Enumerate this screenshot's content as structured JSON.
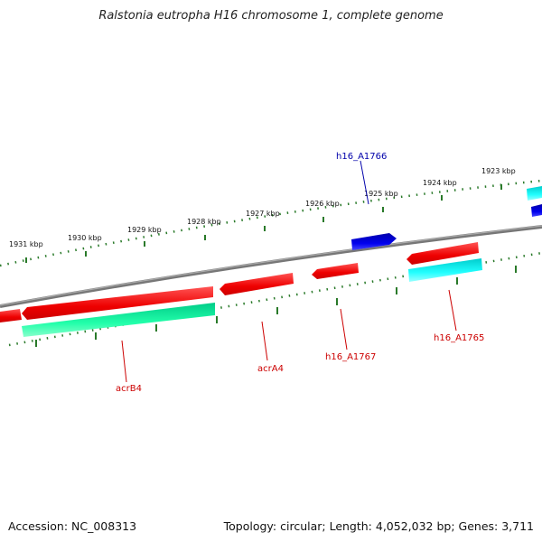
{
  "title": "Ralstonia eutropha H16 chromosome 1, complete genome",
  "footer": {
    "accession": "Accession: NC_008313",
    "summary": "Topology: circular; Length: 4,052,032 bp; Genes: 3,711"
  },
  "colors": {
    "forward_cds": "#ee0000",
    "reverse_cds_a": "#00ee99",
    "reverse_cds_b": "#00eeee",
    "forward_blue": "#0000dd",
    "backbone": "#808080",
    "ruler": "#227722",
    "label_red": "#cc0000",
    "label_blue": "#0000aa"
  },
  "ruler_labels": [
    "1931 kbp",
    "1930 kbp",
    "1929 kbp",
    "1928 kbp",
    "1927 kbp",
    "1926 kbp",
    "1925 kbp",
    "1924 kbp",
    "1923 kbp"
  ],
  "gene_labels": [
    {
      "name": "h16_A1766",
      "color": "blue"
    },
    {
      "name": "acrB4",
      "color": "red"
    },
    {
      "name": "acrA4",
      "color": "red"
    },
    {
      "name": "h16_A1767",
      "color": "red"
    },
    {
      "name": "h16_A1765",
      "color": "red"
    }
  ]
}
